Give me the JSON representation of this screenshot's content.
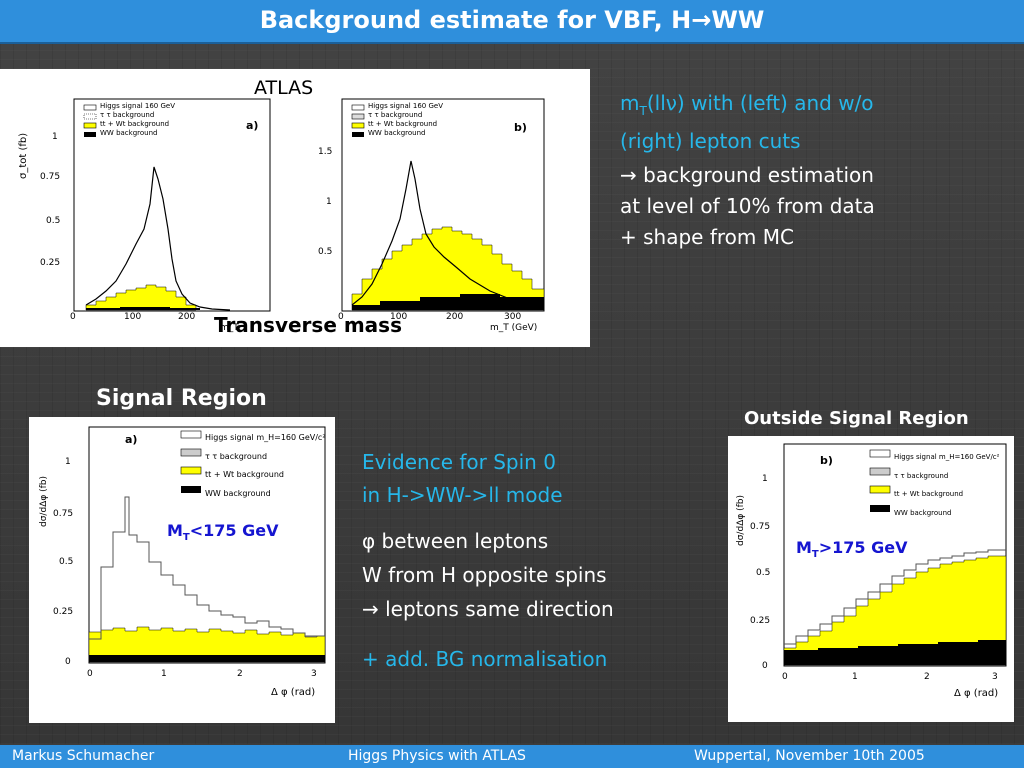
{
  "title": {
    "text": "Background estimate for VBF, H",
    "arrow": "→",
    "suffix": "WW"
  },
  "top_panel": {
    "atlas_label": "ATLAS",
    "caption": "Transverse mass",
    "left_legend": [
      "Higgs signal 160 GeV",
      "τ τ background",
      "tt + Wt background",
      "WW background"
    ],
    "left_tag": "a)",
    "left_yticks": [
      "1",
      "0.75",
      "0.5",
      "0.25"
    ],
    "left_xticks": [
      "0",
      "100",
      "200"
    ],
    "left_xlabel": "m_T",
    "right_legend": [
      "Higgs signal 160 GeV",
      "τ τ background",
      "tt + Wt background",
      "WW background"
    ],
    "right_tag": "b)",
    "right_yticks": [
      "1.5",
      "1",
      "0.5"
    ],
    "right_xticks": [
      "0",
      "100",
      "200",
      "300"
    ],
    "right_xlabel": "m_T (GeV)",
    "yaxis_label": "σ_tot (fb)"
  },
  "right_text": {
    "line1_prefix": "m",
    "line1_sub": "T",
    "line1_rest": "(llν) with (left)  and w/o",
    "line2": "(right) lepton cuts",
    "bullet_arrow": "→",
    "line3": " background estimation",
    "line4": "at level of 10% from data",
    "line5": "+ shape from MC"
  },
  "signal_region": {
    "heading": "Signal Region",
    "cut_label_prefix": "M",
    "cut_label_sub": "T",
    "cut_label_rest": "<175 GeV",
    "tag": "a)",
    "legend": [
      "Higgs signal m_H=160 GeV/c²",
      "τ τ background",
      "tt + Wt background",
      "WW background"
    ],
    "yticks": [
      "1",
      "0.75",
      "0.5",
      "0.25",
      "0"
    ],
    "xticks": [
      "0",
      "1",
      "2",
      "3"
    ],
    "xlabel": "Δ φ (rad)",
    "ylabel": "dσ/dΔφ (fb)"
  },
  "outside_region": {
    "heading": "Outside Signal Region",
    "cut_label_prefix": "M",
    "cut_label_sub": "T",
    "cut_label_rest": ">175 GeV",
    "tag": "b)",
    "legend": [
      "Higgs signal m_H=160 GeV/c²",
      "τ τ background",
      "tt + Wt background",
      "WW background"
    ],
    "yticks": [
      "1",
      "0.75",
      "0.5",
      "0.25",
      "0"
    ],
    "xticks": [
      "0",
      "1",
      "2",
      "3"
    ],
    "xlabel": "Δ φ (rad)",
    "ylabel": "dσ/dΔφ (fb)"
  },
  "middle_text": {
    "line1": "Evidence for Spin 0",
    "line2": "in H->WW->ll mode",
    "phi_symbol": "φ",
    "line3": " between leptons",
    "line4": "W from H opposite spins",
    "arrow": "→",
    "line5": " leptons same direction",
    "line6": "+ add. BG normalisation"
  },
  "footer": {
    "author": "Markus  Schumacher",
    "talk": "Higgs Physics  with ATLAS",
    "venue": "Wuppertal, November 10th 2005"
  },
  "colors": {
    "title_bar": "#2f8fdc",
    "accent_cyan": "#26b7ea",
    "label_blue": "#1515d0",
    "signal_fill": "#ffff00"
  }
}
